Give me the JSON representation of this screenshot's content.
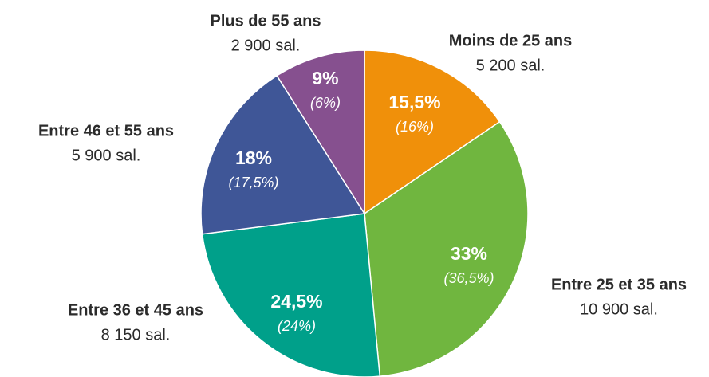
{
  "chart_data": {
    "type": "pie",
    "categories": [
      "Moins de 25 ans",
      "Entre 25 et 35 ans",
      "Entre 36 et 45 ans",
      "Entre 46 et 55 ans",
      "Plus de 55 ans"
    ],
    "values": [
      15.5,
      33,
      24.5,
      18,
      9
    ],
    "value_labels": [
      "15,5%",
      "33%",
      "24,5%",
      "18%",
      "9%"
    ],
    "previous_values": [
      16,
      36.5,
      24,
      17.5,
      6
    ],
    "previous_value_labels": [
      "(16%)",
      "(36,5%)",
      "(24%)",
      "(17,5%)",
      "(6%)"
    ],
    "counts": [
      5200,
      10900,
      8150,
      5900,
      2900
    ],
    "count_labels": [
      "5 200 sal.",
      "10 900 sal.",
      "8 150 sal.",
      "5 900 sal.",
      "2 900 sal."
    ],
    "colors": [
      "#f0900a",
      "#70b63f",
      "#00a08a",
      "#3f5697",
      "#86508f"
    ]
  }
}
